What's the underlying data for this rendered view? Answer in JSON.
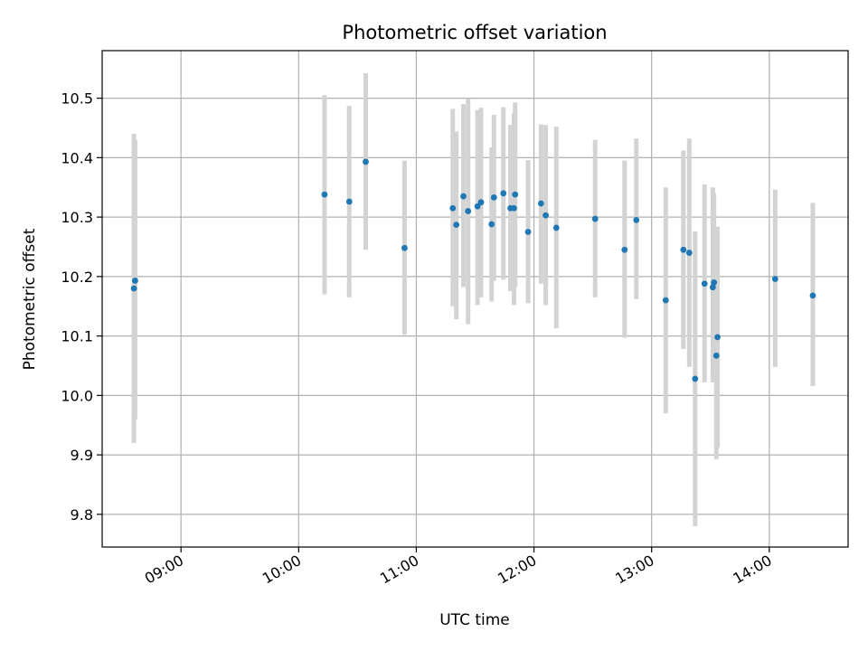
{
  "chart_data": {
    "type": "scatter",
    "title": "Photometric offset variation",
    "xlabel": "UTC time",
    "ylabel": "Photometric offset",
    "x_unit": "UTC time of day (hours)",
    "xlim": [
      8.33,
      14.67
    ],
    "ylim": [
      9.745,
      10.58
    ],
    "x_ticks": [
      {
        "value": 9,
        "label": "09:00"
      },
      {
        "value": 10,
        "label": "10:00"
      },
      {
        "value": 11,
        "label": "11:00"
      },
      {
        "value": 12,
        "label": "12:00"
      },
      {
        "value": 13,
        "label": "13:00"
      },
      {
        "value": 14,
        "label": "14:00"
      }
    ],
    "y_ticks": [
      {
        "value": 9.8,
        "label": "9.8"
      },
      {
        "value": 9.9,
        "label": "9.9"
      },
      {
        "value": 10.0,
        "label": "10.0"
      },
      {
        "value": 10.1,
        "label": "10.1"
      },
      {
        "value": 10.2,
        "label": "10.2"
      },
      {
        "value": 10.3,
        "label": "10.3"
      },
      {
        "value": 10.4,
        "label": "10.4"
      },
      {
        "value": 10.5,
        "label": "10.5"
      }
    ],
    "grid": true,
    "point_color": "#1f77b4",
    "errorbar_color": "#d3d3d3",
    "points": [
      {
        "x": 8.6,
        "y": 10.18,
        "low": 9.92,
        "high": 10.44
      },
      {
        "x": 8.61,
        "y": 10.193,
        "low": 9.96,
        "high": 10.43
      },
      {
        "x": 10.22,
        "y": 10.338,
        "low": 10.17,
        "high": 10.505
      },
      {
        "x": 10.43,
        "y": 10.326,
        "low": 10.165,
        "high": 10.487
      },
      {
        "x": 10.57,
        "y": 10.393,
        "low": 10.245,
        "high": 10.542
      },
      {
        "x": 10.9,
        "y": 10.248,
        "low": 10.102,
        "high": 10.395
      },
      {
        "x": 11.31,
        "y": 10.315,
        "low": 10.15,
        "high": 10.482
      },
      {
        "x": 11.34,
        "y": 10.287,
        "low": 10.128,
        "high": 10.444
      },
      {
        "x": 11.4,
        "y": 10.335,
        "low": 10.182,
        "high": 10.49
      },
      {
        "x": 11.44,
        "y": 10.31,
        "low": 10.12,
        "high": 10.5
      },
      {
        "x": 11.52,
        "y": 10.318,
        "low": 10.152,
        "high": 10.48
      },
      {
        "x": 11.55,
        "y": 10.325,
        "low": 10.165,
        "high": 10.484
      },
      {
        "x": 11.64,
        "y": 10.288,
        "low": 10.158,
        "high": 10.417
      },
      {
        "x": 11.66,
        "y": 10.333,
        "low": 10.193,
        "high": 10.472
      },
      {
        "x": 11.74,
        "y": 10.34,
        "low": 10.195,
        "high": 10.485
      },
      {
        "x": 11.8,
        "y": 10.315,
        "low": 10.175,
        "high": 10.455
      },
      {
        "x": 11.83,
        "y": 10.315,
        "low": 10.152,
        "high": 10.475
      },
      {
        "x": 11.84,
        "y": 10.338,
        "low": 10.182,
        "high": 10.493
      },
      {
        "x": 11.95,
        "y": 10.275,
        "low": 10.155,
        "high": 10.396
      },
      {
        "x": 12.06,
        "y": 10.323,
        "low": 10.188,
        "high": 10.456
      },
      {
        "x": 12.1,
        "y": 10.303,
        "low": 10.152,
        "high": 10.455
      },
      {
        "x": 12.19,
        "y": 10.282,
        "low": 10.113,
        "high": 10.452
      },
      {
        "x": 12.52,
        "y": 10.297,
        "low": 10.165,
        "high": 10.43
      },
      {
        "x": 12.77,
        "y": 10.245,
        "low": 10.097,
        "high": 10.395
      },
      {
        "x": 12.87,
        "y": 10.295,
        "low": 10.162,
        "high": 10.432
      },
      {
        "x": 13.12,
        "y": 10.16,
        "low": 9.97,
        "high": 10.35
      },
      {
        "x": 13.27,
        "y": 10.245,
        "low": 10.078,
        "high": 10.412
      },
      {
        "x": 13.32,
        "y": 10.24,
        "low": 10.048,
        "high": 10.432
      },
      {
        "x": 13.37,
        "y": 10.028,
        "low": 9.78,
        "high": 10.276
      },
      {
        "x": 13.45,
        "y": 10.188,
        "low": 10.022,
        "high": 10.355
      },
      {
        "x": 13.52,
        "y": 10.182,
        "low": 10.022,
        "high": 10.35
      },
      {
        "x": 13.53,
        "y": 10.19,
        "low": 10.04,
        "high": 10.34
      },
      {
        "x": 13.55,
        "y": 10.067,
        "low": 9.893,
        "high": 10.24
      },
      {
        "x": 13.56,
        "y": 10.098,
        "low": 9.912,
        "high": 10.284
      },
      {
        "x": 14.05,
        "y": 10.196,
        "low": 10.048,
        "high": 10.346
      },
      {
        "x": 14.37,
        "y": 10.168,
        "low": 10.016,
        "high": 10.324
      }
    ]
  }
}
